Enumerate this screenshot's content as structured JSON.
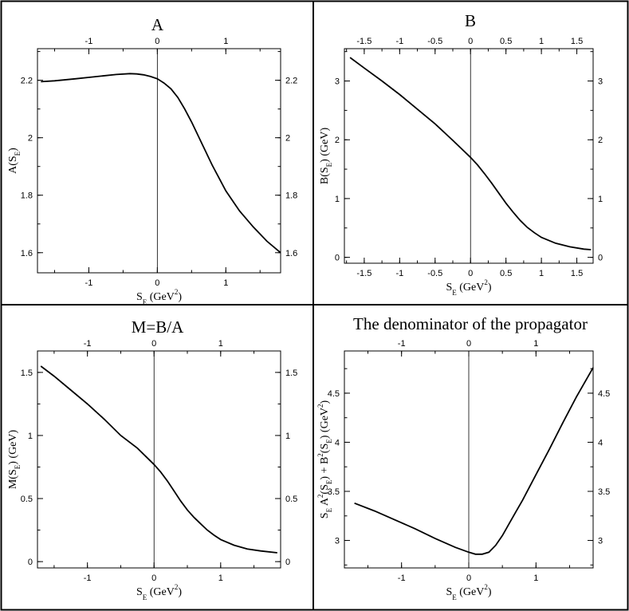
{
  "chart_data": [
    {
      "type": "line",
      "title": "A",
      "x_ticks": [
        "-1",
        "0",
        "1"
      ],
      "x_tick_values": [
        -1,
        0,
        1
      ],
      "y_ticks": [
        "1.6",
        "1.8",
        "2",
        "2.2"
      ],
      "y_tick_values": [
        1.6,
        1.8,
        2.0,
        2.2
      ],
      "xlim": [
        -1.75,
        1.8
      ],
      "ylim": [
        1.53,
        2.31
      ],
      "xlabel": {
        "base": "S",
        "sub": "E",
        "rest": "(GeV",
        "sup": "2",
        "close": ")"
      },
      "ylabel": {
        "base": "A(S",
        "sub": "E",
        "close": ")"
      },
      "vline_x": 0,
      "series": [
        {
          "x": [
            -1.7,
            -1.5,
            -1.2,
            -1.0,
            -0.8,
            -0.6,
            -0.4,
            -0.3,
            -0.2,
            -0.1,
            0,
            0.1,
            0.2,
            0.3,
            0.4,
            0.5,
            0.6,
            0.7,
            0.8,
            0.9,
            1.0,
            1.2,
            1.4,
            1.6,
            1.8
          ],
          "y": [
            2.195,
            2.198,
            2.205,
            2.21,
            2.215,
            2.22,
            2.223,
            2.222,
            2.219,
            2.213,
            2.205,
            2.19,
            2.17,
            2.14,
            2.1,
            2.055,
            2.005,
            1.955,
            1.905,
            1.86,
            1.815,
            1.745,
            1.69,
            1.64,
            1.6
          ]
        }
      ]
    },
    {
      "type": "line",
      "title": "B",
      "x_ticks": [
        "-1.5",
        "-1",
        "-0.5",
        "0",
        "0.5",
        "1",
        "1.5"
      ],
      "x_tick_values": [
        -1.5,
        -1,
        -0.5,
        0,
        0.5,
        1,
        1.5
      ],
      "y_ticks": [
        "0",
        "1",
        "2",
        "3"
      ],
      "y_tick_values": [
        0,
        1,
        2,
        3
      ],
      "xlim": [
        -1.78,
        1.73
      ],
      "ylim": [
        -0.1,
        3.55
      ],
      "xlabel": {
        "base": "S",
        "sub": "E",
        "rest": "(GeV",
        "sup": "2",
        "close": ")"
      },
      "ylabel": {
        "base": "B(S",
        "sub": "E",
        "close": ")",
        "unit": "(GeV)"
      },
      "vline_x": 0,
      "series": [
        {
          "x": [
            -1.7,
            -1.5,
            -1.25,
            -1.0,
            -0.75,
            -0.5,
            -0.25,
            0,
            0.1,
            0.2,
            0.3,
            0.4,
            0.5,
            0.6,
            0.7,
            0.8,
            0.9,
            1.0,
            1.2,
            1.4,
            1.6,
            1.7
          ],
          "y": [
            3.4,
            3.22,
            3.0,
            2.77,
            2.52,
            2.27,
            1.99,
            1.7,
            1.57,
            1.42,
            1.26,
            1.09,
            0.92,
            0.77,
            0.63,
            0.51,
            0.42,
            0.34,
            0.24,
            0.18,
            0.14,
            0.13
          ]
        }
      ]
    },
    {
      "type": "line",
      "title": "M=B/A",
      "x_ticks": [
        "-1",
        "0",
        "1"
      ],
      "x_tick_values": [
        -1,
        0,
        1
      ],
      "y_ticks": [
        "0",
        "0.5",
        "1",
        "1.5"
      ],
      "y_tick_values": [
        0,
        0.5,
        1,
        1.5
      ],
      "xlim": [
        -1.75,
        1.9
      ],
      "ylim": [
        -0.05,
        1.67
      ],
      "xlabel": {
        "base": "S",
        "sub": "E",
        "rest": "(GeV",
        "sup": "2",
        "close": ")"
      },
      "ylabel": {
        "base": "M(S",
        "sub": "E",
        "close": ")",
        "unit": "(GeV)"
      },
      "vline_x": 0,
      "series": [
        {
          "x": [
            -1.7,
            -1.5,
            -1.25,
            -1.0,
            -0.75,
            -0.5,
            -0.25,
            0,
            0.1,
            0.2,
            0.3,
            0.4,
            0.5,
            0.6,
            0.7,
            0.8,
            0.9,
            1.0,
            1.2,
            1.4,
            1.6,
            1.85
          ],
          "y": [
            1.55,
            1.47,
            1.36,
            1.25,
            1.13,
            1.0,
            0.9,
            0.77,
            0.71,
            0.64,
            0.56,
            0.48,
            0.41,
            0.35,
            0.3,
            0.25,
            0.21,
            0.175,
            0.13,
            0.1,
            0.085,
            0.07
          ]
        }
      ]
    },
    {
      "type": "line",
      "title": "The denominator of the propagator",
      "x_ticks": [
        "-1",
        "0",
        "1"
      ],
      "x_tick_values": [
        -1,
        0,
        1
      ],
      "y_ticks": [
        "3",
        "3.5",
        "4",
        "4.5"
      ],
      "y_tick_values": [
        3,
        3.5,
        4,
        4.5
      ],
      "xlim": [
        -1.85,
        1.85
      ],
      "ylim": [
        2.72,
        4.93
      ],
      "xlabel": {
        "base": "S",
        "sub": "E",
        "rest": "(GeV",
        "sup": "2",
        "close": ")"
      },
      "ylabel": {
        "text": "S_E A^2(S_E) + B^2(S_E)",
        "unit": "(GeV^2)"
      },
      "vline_x": 0,
      "series": [
        {
          "x": [
            -1.7,
            -1.4,
            -1.1,
            -0.8,
            -0.5,
            -0.2,
            0,
            0.1,
            0.2,
            0.3,
            0.4,
            0.5,
            0.6,
            0.7,
            0.8,
            1.0,
            1.2,
            1.4,
            1.6,
            1.85
          ],
          "y": [
            3.38,
            3.3,
            3.21,
            3.12,
            3.02,
            2.93,
            2.88,
            2.86,
            2.86,
            2.88,
            2.95,
            3.05,
            3.17,
            3.29,
            3.41,
            3.67,
            3.93,
            4.2,
            4.46,
            4.76
          ]
        }
      ]
    }
  ]
}
